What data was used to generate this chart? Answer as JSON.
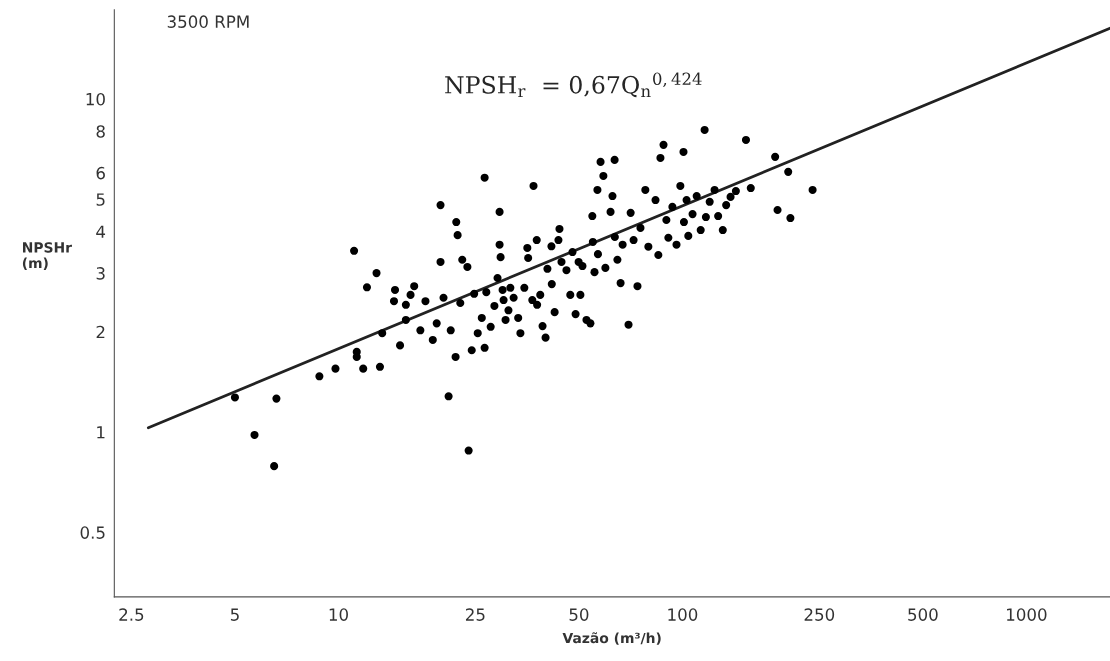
{
  "chart_data": {
    "type": "scatter",
    "xlabel": "Vazão (m³/h)",
    "ylabel": "NPSHr\n(m)",
    "annotations": [
      "3500 RPM",
      "NPSH$_{r}$  = 0,67Q$_{n}$$^{0,424}$"
    ],
    "log": "xy",
    "grid": false,
    "legend": false,
    "xlim": [
      2.23,
      1750
    ],
    "ylim": [
      0.32,
      18.5
    ],
    "xticks": [
      2.5,
      5,
      10,
      25,
      50,
      100,
      250,
      500,
      1000
    ],
    "yticks": [
      0.5,
      1,
      2,
      3,
      4,
      5,
      6,
      8,
      10
    ],
    "series": [
      {
        "marker": "circle",
        "color": "#000000",
        "x": [
          5,
          5.7,
          6.5,
          6.6,
          8.8,
          9.8,
          11.1,
          11.3,
          11.3,
          11.8,
          12.1,
          12.9,
          13.2,
          13.4,
          14.5,
          14.6,
          15.1,
          15.7,
          15.7,
          16.2,
          16.6,
          17.3,
          17.9,
          18.8,
          19.3,
          19.8,
          19.8,
          20.2,
          20.9,
          21.2,
          21.9,
          22.0,
          22.2,
          22.6,
          22.9,
          23.7,
          23.9,
          24.8,
          24.4,
          25.4,
          26.1,
          26.6,
          26.6,
          26.9,
          27.7,
          28.4,
          29,
          29.4,
          29.4,
          29.6,
          30,
          30.2,
          30.6,
          31.2,
          31.6,
          32.3,
          33.3,
          33.8,
          34.7,
          35.4,
          35.6,
          36.6,
          36.9,
          37.7,
          37.8,
          38.6,
          39.2,
          40,
          40.5,
          41.6,
          41.7,
          42.5,
          43.6,
          43.9,
          44.5,
          46,
          47.2,
          47.9,
          48.9,
          49.9,
          50.5,
          51.2,
          52.6,
          54,
          54.7,
          54.9,
          55.5,
          56.6,
          56.8,
          57.8,
          58.9,
          59.7,
          61.8,
          62.6,
          63.5,
          63.6,
          64.7,
          66.1,
          67,
          69.7,
          70.7,
          72.1,
          74,
          75.5,
          78,
          79.6,
          83.5,
          85.1,
          86.3,
          88.1,
          89.8,
          91,
          93.5,
          96.1,
          98.6,
          100.7,
          101,
          102.8,
          104,
          107,
          110,
          113,
          116,
          117,
          120,
          124,
          127,
          131,
          134,
          138,
          143,
          153,
          158,
          186,
          189,
          206,
          203,
          239
        ],
        "values": [
          1.27,
          0.98,
          0.79,
          1.26,
          1.47,
          1.55,
          3.5,
          1.68,
          1.74,
          1.55,
          2.72,
          3.0,
          1.57,
          1.98,
          2.47,
          2.67,
          1.82,
          2.17,
          2.41,
          2.58,
          2.74,
          2.02,
          2.47,
          1.89,
          2.12,
          4.8,
          3.24,
          2.53,
          1.28,
          2.02,
          1.68,
          4.27,
          3.9,
          2.44,
          3.29,
          3.13,
          0.88,
          2.6,
          1.76,
          1.98,
          2.2,
          5.8,
          1.79,
          2.63,
          2.07,
          2.39,
          2.9,
          4.58,
          3.65,
          3.35,
          2.67,
          2.49,
          2.17,
          2.32,
          2.71,
          2.53,
          2.2,
          1.98,
          2.71,
          3.57,
          3.33,
          2.49,
          5.48,
          3.77,
          2.41,
          2.58,
          2.08,
          1.92,
          3.09,
          3.61,
          2.78,
          2.29,
          3.77,
          4.07,
          3.24,
          3.06,
          2.58,
          3.47,
          2.26,
          3.24,
          2.58,
          3.15,
          2.17,
          2.12,
          4.45,
          3.72,
          3.02,
          5.33,
          3.42,
          6.47,
          5.87,
          3.11,
          4.58,
          5.11,
          6.56,
          3.85,
          3.29,
          2.8,
          3.65,
          2.1,
          4.55,
          3.77,
          2.74,
          4.1,
          5.33,
          3.6,
          4.97,
          3.4,
          6.65,
          7.28,
          4.33,
          3.83,
          4.74,
          3.65,
          5.48,
          6.93,
          4.27,
          4.97,
          3.88,
          4.51,
          5.11,
          4.04,
          8.07,
          4.42,
          4.91,
          5.33,
          4.45,
          4.04,
          4.8,
          5.08,
          5.29,
          7.53,
          5.4,
          6.7,
          4.64,
          4.39,
          6.04,
          5.33
        ]
      },
      {
        "type": "line",
        "color": "#222222",
        "x": [
          2.8,
          1750
        ],
        "values": [
          1.03,
          16.3
        ]
      }
    ]
  }
}
